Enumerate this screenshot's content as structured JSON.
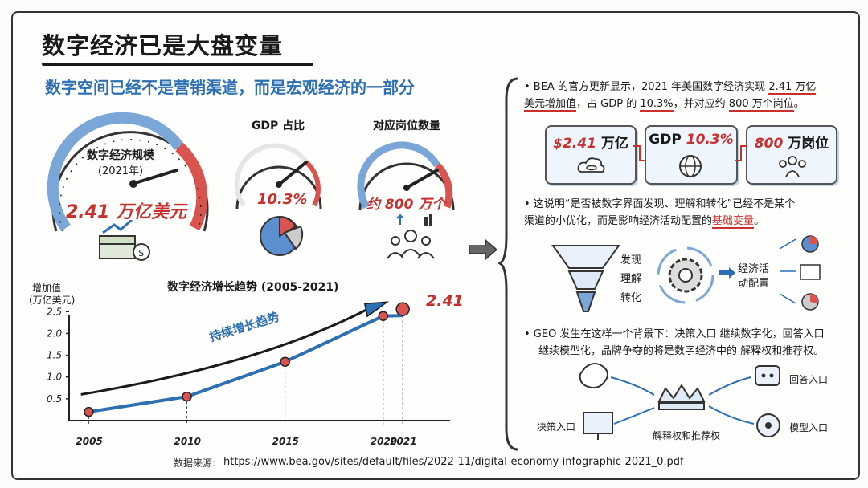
{
  "header": {
    "title": "数字经济已是大盘变量",
    "subtitle": "数字空间已经不是营销渠道，而是宏观经济的一部分"
  },
  "gauges": {
    "scale": {
      "label_line1": "数字经济规模",
      "label_line2": "(2021年)",
      "value": "2.41 万亿美元"
    },
    "gdp": {
      "label": "GDP 占比",
      "value": "10.3%"
    },
    "jobs": {
      "label": "对应岗位数量",
      "value": "约 800 万个"
    }
  },
  "chart": {
    "title": "数字经济增长趋势 (2005-2021)",
    "ylabel_line1": "增加值",
    "ylabel_line2": "(万亿美元)",
    "trend_label": "持续增长趋势",
    "end_label": "2.41",
    "source_label": "数据来源:",
    "source_url": "https://www.bea.gov/sites/default/files/2022-11/digital-economy-infographic-2021_0.pdf"
  },
  "chart_data": {
    "type": "line",
    "title": "数字经济增长趋势 (2005-2021)",
    "ylabel": "增加值 (万亿美元)",
    "xlabel": "",
    "x": [
      2005,
      2010,
      2015,
      2020,
      2021
    ],
    "y": [
      0.2,
      0.55,
      1.35,
      2.4,
      2.41
    ],
    "yticks": [
      "0.5",
      "1.0",
      "1.5",
      "2.0",
      "2.5"
    ],
    "xticks": [
      "2005",
      "2010",
      "2015",
      "2020",
      "2021"
    ],
    "ylim": [
      0,
      2.8
    ],
    "xlim": [
      2004,
      2023
    ]
  },
  "right": {
    "bullet1_a": "• BEA 的官方更新显示，2021 年美国数字经济实现 ",
    "bullet1_b": "2.41 万亿",
    "bullet1_c": "美元增加值",
    "bullet1_d": "，占 GDP 的 ",
    "bullet1_e": "10.3%",
    "bullet1_f": "，并对应约 ",
    "bullet1_g": "800 万个岗位",
    "bullet1_h": "。",
    "stat1_num": "$2.41",
    "stat1_unit": "万亿",
    "stat2_pre": "GDP",
    "stat2_num": "10.3%",
    "stat3_num": "800",
    "stat3_unit": "万岗位",
    "bullet2_a": "• 这说明“是否被数字界面发现、理解和转化”已经不是某个",
    "bullet2_b": "渠道的小优化，而是影响经济活动配置的",
    "bullet2_c": "基础变量",
    "bullet2_d": "。",
    "funnel": [
      "发现",
      "理解",
      "转化"
    ],
    "alloc_line1": "经济活",
    "alloc_line2": "动配置",
    "bullet3_a": "• GEO 发生在这样一个背景下：决策入口 继续数字化，回答入口",
    "bullet3_b": "继续模型化，品牌争夺的将是数字经济中的 解释权和推荐权。",
    "node_decision": "决策入口",
    "node_crown": "解释权和推荐权",
    "node_answer": "回答入口",
    "node_model": "模型入口"
  },
  "colors": {
    "accent_blue": "#2d6fb3",
    "accent_red": "#c8302e",
    "ink": "#1a1a1a"
  }
}
